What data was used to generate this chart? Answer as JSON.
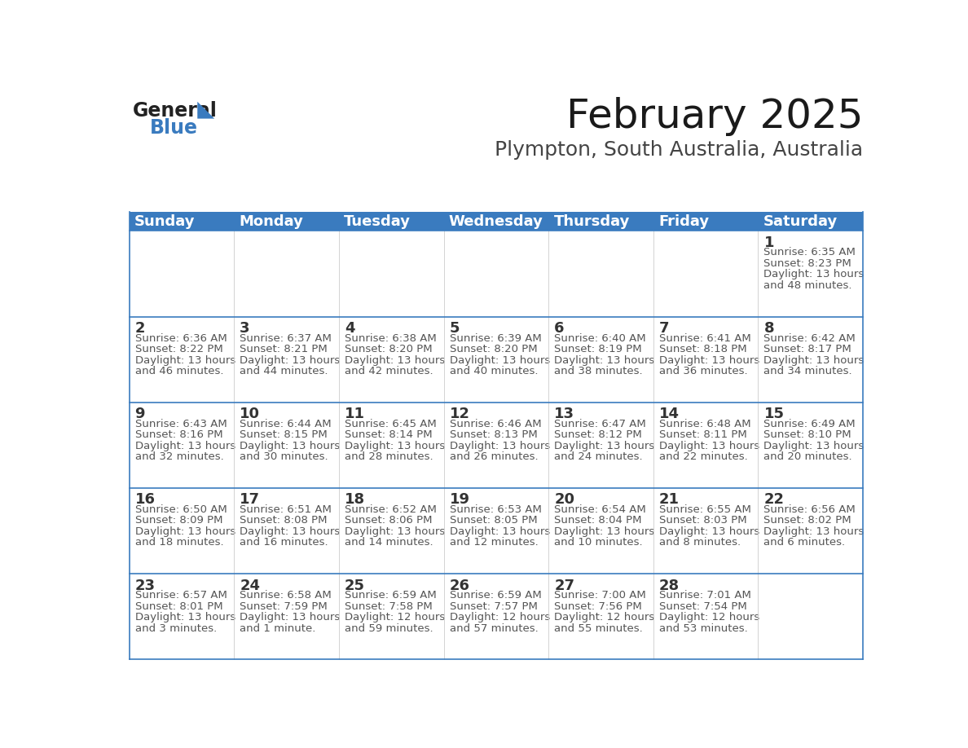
{
  "title": "February 2025",
  "subtitle": "Plympton, South Australia, Australia",
  "header_color": "#3a7bbf",
  "header_text_color": "#ffffff",
  "cell_bg": "#ffffff",
  "border_color": "#3a7bbf",
  "row_divider_color": "#3a7bbf",
  "col_divider_color": "#cccccc",
  "days_of_week": [
    "Sunday",
    "Monday",
    "Tuesday",
    "Wednesday",
    "Thursday",
    "Friday",
    "Saturday"
  ],
  "weeks": [
    [
      {
        "day": "",
        "sunrise": "",
        "sunset": "",
        "daylight": ""
      },
      {
        "day": "",
        "sunrise": "",
        "sunset": "",
        "daylight": ""
      },
      {
        "day": "",
        "sunrise": "",
        "sunset": "",
        "daylight": ""
      },
      {
        "day": "",
        "sunrise": "",
        "sunset": "",
        "daylight": ""
      },
      {
        "day": "",
        "sunrise": "",
        "sunset": "",
        "daylight": ""
      },
      {
        "day": "",
        "sunrise": "",
        "sunset": "",
        "daylight": ""
      },
      {
        "day": "1",
        "sunrise": "6:35 AM",
        "sunset": "8:23 PM",
        "daylight": "13 hours and 48 minutes."
      }
    ],
    [
      {
        "day": "2",
        "sunrise": "6:36 AM",
        "sunset": "8:22 PM",
        "daylight": "13 hours and 46 minutes."
      },
      {
        "day": "3",
        "sunrise": "6:37 AM",
        "sunset": "8:21 PM",
        "daylight": "13 hours and 44 minutes."
      },
      {
        "day": "4",
        "sunrise": "6:38 AM",
        "sunset": "8:20 PM",
        "daylight": "13 hours and 42 minutes."
      },
      {
        "day": "5",
        "sunrise": "6:39 AM",
        "sunset": "8:20 PM",
        "daylight": "13 hours and 40 minutes."
      },
      {
        "day": "6",
        "sunrise": "6:40 AM",
        "sunset": "8:19 PM",
        "daylight": "13 hours and 38 minutes."
      },
      {
        "day": "7",
        "sunrise": "6:41 AM",
        "sunset": "8:18 PM",
        "daylight": "13 hours and 36 minutes."
      },
      {
        "day": "8",
        "sunrise": "6:42 AM",
        "sunset": "8:17 PM",
        "daylight": "13 hours and 34 minutes."
      }
    ],
    [
      {
        "day": "9",
        "sunrise": "6:43 AM",
        "sunset": "8:16 PM",
        "daylight": "13 hours and 32 minutes."
      },
      {
        "day": "10",
        "sunrise": "6:44 AM",
        "sunset": "8:15 PM",
        "daylight": "13 hours and 30 minutes."
      },
      {
        "day": "11",
        "sunrise": "6:45 AM",
        "sunset": "8:14 PM",
        "daylight": "13 hours and 28 minutes."
      },
      {
        "day": "12",
        "sunrise": "6:46 AM",
        "sunset": "8:13 PM",
        "daylight": "13 hours and 26 minutes."
      },
      {
        "day": "13",
        "sunrise": "6:47 AM",
        "sunset": "8:12 PM",
        "daylight": "13 hours and 24 minutes."
      },
      {
        "day": "14",
        "sunrise": "6:48 AM",
        "sunset": "8:11 PM",
        "daylight": "13 hours and 22 minutes."
      },
      {
        "day": "15",
        "sunrise": "6:49 AM",
        "sunset": "8:10 PM",
        "daylight": "13 hours and 20 minutes."
      }
    ],
    [
      {
        "day": "16",
        "sunrise": "6:50 AM",
        "sunset": "8:09 PM",
        "daylight": "13 hours and 18 minutes."
      },
      {
        "day": "17",
        "sunrise": "6:51 AM",
        "sunset": "8:08 PM",
        "daylight": "13 hours and 16 minutes."
      },
      {
        "day": "18",
        "sunrise": "6:52 AM",
        "sunset": "8:06 PM",
        "daylight": "13 hours and 14 minutes."
      },
      {
        "day": "19",
        "sunrise": "6:53 AM",
        "sunset": "8:05 PM",
        "daylight": "13 hours and 12 minutes."
      },
      {
        "day": "20",
        "sunrise": "6:54 AM",
        "sunset": "8:04 PM",
        "daylight": "13 hours and 10 minutes."
      },
      {
        "day": "21",
        "sunrise": "6:55 AM",
        "sunset": "8:03 PM",
        "daylight": "13 hours and 8 minutes."
      },
      {
        "day": "22",
        "sunrise": "6:56 AM",
        "sunset": "8:02 PM",
        "daylight": "13 hours and 6 minutes."
      }
    ],
    [
      {
        "day": "23",
        "sunrise": "6:57 AM",
        "sunset": "8:01 PM",
        "daylight": "13 hours and 3 minutes."
      },
      {
        "day": "24",
        "sunrise": "6:58 AM",
        "sunset": "7:59 PM",
        "daylight": "13 hours and 1 minute."
      },
      {
        "day": "25",
        "sunrise": "6:59 AM",
        "sunset": "7:58 PM",
        "daylight": "12 hours and 59 minutes."
      },
      {
        "day": "26",
        "sunrise": "6:59 AM",
        "sunset": "7:57 PM",
        "daylight": "12 hours and 57 minutes."
      },
      {
        "day": "27",
        "sunrise": "7:00 AM",
        "sunset": "7:56 PM",
        "daylight": "12 hours and 55 minutes."
      },
      {
        "day": "28",
        "sunrise": "7:01 AM",
        "sunset": "7:54 PM",
        "daylight": "12 hours and 53 minutes."
      },
      {
        "day": "",
        "sunrise": "",
        "sunset": "",
        "daylight": ""
      }
    ]
  ],
  "title_fontsize": 36,
  "subtitle_fontsize": 18,
  "day_header_fontsize": 13,
  "day_num_fontsize": 13,
  "cell_text_fontsize": 9.5,
  "logo_general_color": "#222222",
  "logo_blue_color": "#3a7bbf",
  "logo_general_fontsize": 17,
  "logo_blue_fontsize": 17
}
